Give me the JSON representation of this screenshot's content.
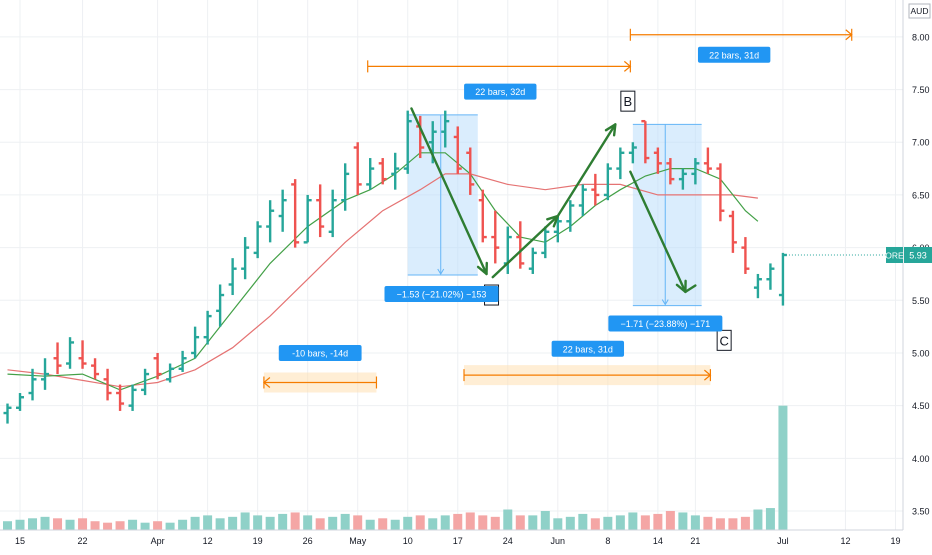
{
  "chart_data": {
    "type": "ohlc",
    "currency": "AUD",
    "symbol": "ORE",
    "last_price": "5.93",
    "y_ticks": [
      "3.50",
      "4.00",
      "4.50",
      "5.00",
      "5.50",
      "6.00",
      "6.50",
      "7.00",
      "7.50",
      "8.00"
    ],
    "ylim": [
      3.32,
      8.35
    ],
    "x_ticks": [
      {
        "label": "15",
        "bar": 1
      },
      {
        "label": "22",
        "bar": 6
      },
      {
        "label": "Apr",
        "bar": 12
      },
      {
        "label": "12",
        "bar": 16
      },
      {
        "label": "19",
        "bar": 20
      },
      {
        "label": "26",
        "bar": 24
      },
      {
        "label": "May",
        "bar": 28
      },
      {
        "label": "10",
        "bar": 32
      },
      {
        "label": "17",
        "bar": 36
      },
      {
        "label": "24",
        "bar": 40
      },
      {
        "label": "Jun",
        "bar": 44
      },
      {
        "label": "8",
        "bar": 48
      },
      {
        "label": "14",
        "bar": 52
      },
      {
        "label": "21",
        "bar": 55
      },
      {
        "label": "Jul",
        "bar": 62
      },
      {
        "label": "12",
        "bar": 67
      },
      {
        "label": "19",
        "bar": 71
      }
    ],
    "bars": [
      [
        4.43,
        4.52,
        4.33,
        4.48
      ],
      [
        4.48,
        4.62,
        4.45,
        4.58
      ],
      [
        4.62,
        4.85,
        4.55,
        4.75
      ],
      [
        4.75,
        4.95,
        4.65,
        4.8
      ],
      [
        4.95,
        5.1,
        4.8,
        4.88
      ],
      [
        4.9,
        5.15,
        4.85,
        5.1
      ],
      [
        4.95,
        5.12,
        4.85,
        4.9
      ],
      [
        4.88,
        4.95,
        4.75,
        4.8
      ],
      [
        4.75,
        4.85,
        4.55,
        4.62
      ],
      [
        4.62,
        4.7,
        4.45,
        4.52
      ],
      [
        4.5,
        4.7,
        4.45,
        4.65
      ],
      [
        4.65,
        4.85,
        4.6,
        4.8
      ],
      [
        4.95,
        5.0,
        4.75,
        4.8
      ],
      [
        4.75,
        4.9,
        4.72,
        4.85
      ],
      [
        4.85,
        5.02,
        4.82,
        4.95
      ],
      [
        5.0,
        5.25,
        4.95,
        5.15
      ],
      [
        5.15,
        5.4,
        5.08,
        5.35
      ],
      [
        5.4,
        5.65,
        5.25,
        5.55
      ],
      [
        5.65,
        5.9,
        5.55,
        5.8
      ],
      [
        5.8,
        6.1,
        5.7,
        6.0
      ],
      [
        5.95,
        6.25,
        5.9,
        6.2
      ],
      [
        6.2,
        6.45,
        6.05,
        6.35
      ],
      [
        6.3,
        6.55,
        6.15,
        6.45
      ],
      [
        6.6,
        6.65,
        6.0,
        6.05
      ],
      [
        6.05,
        6.5,
        6.05,
        6.45
      ],
      [
        6.45,
        6.6,
        6.1,
        6.2
      ],
      [
        6.15,
        6.55,
        6.1,
        6.45
      ],
      [
        6.45,
        6.8,
        6.35,
        6.7
      ],
      [
        6.95,
        7.0,
        6.5,
        6.6
      ],
      [
        6.6,
        6.85,
        6.55,
        6.75
      ],
      [
        6.8,
        6.85,
        6.6,
        6.65
      ],
      [
        6.7,
        6.9,
        6.55,
        6.75
      ],
      [
        6.75,
        7.3,
        6.7,
        7.2
      ],
      [
        7.15,
        7.25,
        6.85,
        6.95
      ],
      [
        7.0,
        7.2,
        6.8,
        7.1
      ],
      [
        7.1,
        7.3,
        6.95,
        7.2
      ],
      [
        7.05,
        7.15,
        6.7,
        6.75
      ],
      [
        6.9,
        6.95,
        6.5,
        6.6
      ],
      [
        6.45,
        6.55,
        6.05,
        6.1
      ],
      [
        6.1,
        6.35,
        5.85,
        6.0
      ],
      [
        5.85,
        6.2,
        5.75,
        6.1
      ],
      [
        6.1,
        6.25,
        5.8,
        5.85
      ],
      [
        5.8,
        6.0,
        5.75,
        5.95
      ],
      [
        5.95,
        6.2,
        5.9,
        6.15
      ],
      [
        6.15,
        6.3,
        6.05,
        6.25
      ],
      [
        6.25,
        6.45,
        6.15,
        6.4
      ],
      [
        6.4,
        6.6,
        6.3,
        6.55
      ],
      [
        6.55,
        6.7,
        6.4,
        6.5
      ],
      [
        6.5,
        6.8,
        6.45,
        6.75
      ],
      [
        6.75,
        6.95,
        6.65,
        6.9
      ],
      [
        6.9,
        7.0,
        6.8,
        6.95
      ],
      [
        7.2,
        7.2,
        6.8,
        6.85
      ],
      [
        6.9,
        6.95,
        6.7,
        6.8
      ],
      [
        6.8,
        6.85,
        6.6,
        6.65
      ],
      [
        6.65,
        6.75,
        6.55,
        6.7
      ],
      [
        6.7,
        6.85,
        6.6,
        6.8
      ],
      [
        6.8,
        6.95,
        6.7,
        6.75
      ],
      [
        6.75,
        6.8,
        6.25,
        6.35
      ],
      [
        6.3,
        6.35,
        5.95,
        6.05
      ],
      [
        6.0,
        6.1,
        5.75,
        5.8
      ],
      [
        5.62,
        5.75,
        5.52,
        5.7
      ],
      [
        5.7,
        5.85,
        5.6,
        5.8
      ],
      [
        5.55,
        5.95,
        5.45,
        5.93
      ]
    ],
    "volume": [
      0.6,
      0.7,
      0.8,
      0.9,
      0.8,
      0.7,
      0.8,
      0.6,
      0.5,
      0.6,
      0.7,
      0.5,
      0.6,
      0.5,
      0.7,
      0.9,
      1.0,
      0.8,
      0.9,
      1.2,
      1.0,
      0.9,
      1.1,
      1.2,
      1.0,
      0.8,
      0.9,
      1.1,
      1.0,
      0.7,
      0.8,
      0.7,
      0.9,
      1.0,
      0.8,
      1.0,
      1.1,
      1.2,
      1.0,
      0.9,
      1.4,
      1.0,
      1.0,
      1.3,
      0.8,
      0.9,
      1.1,
      0.8,
      0.9,
      1.0,
      1.2,
      1.0,
      1.1,
      1.3,
      1.2,
      1.0,
      0.9,
      0.8,
      0.8,
      0.9,
      1.4,
      1.5,
      8.5
    ],
    "x_bar_span": [
      -0.6,
      71.6
    ],
    "ma_fast": [
      [
        0,
        4.8
      ],
      [
        3,
        4.78
      ],
      [
        6,
        4.8
      ],
      [
        9,
        4.65
      ],
      [
        12,
        4.78
      ],
      [
        15,
        4.95
      ],
      [
        18,
        5.4
      ],
      [
        21,
        5.85
      ],
      [
        24,
        6.2
      ],
      [
        27,
        6.45
      ],
      [
        29,
        6.55
      ],
      [
        31,
        6.7
      ],
      [
        33,
        6.9
      ],
      [
        35,
        6.9
      ],
      [
        37,
        6.7
      ],
      [
        39,
        6.35
      ],
      [
        41,
        6.1
      ],
      [
        43,
        6.05
      ],
      [
        45,
        6.2
      ],
      [
        47,
        6.4
      ],
      [
        49,
        6.55
      ],
      [
        51,
        6.68
      ],
      [
        53,
        6.75
      ],
      [
        55,
        6.75
      ],
      [
        57,
        6.65
      ],
      [
        58,
        6.5
      ],
      [
        59,
        6.35
      ],
      [
        60,
        6.25
      ]
    ],
    "ma_slow": [
      [
        0,
        4.84
      ],
      [
        3,
        4.8
      ],
      [
        6,
        4.74
      ],
      [
        9,
        4.68
      ],
      [
        12,
        4.72
      ],
      [
        15,
        4.84
      ],
      [
        18,
        5.05
      ],
      [
        21,
        5.35
      ],
      [
        24,
        5.7
      ],
      [
        27,
        6.05
      ],
      [
        30,
        6.35
      ],
      [
        33,
        6.55
      ],
      [
        35,
        6.7
      ],
      [
        37,
        6.7
      ],
      [
        40,
        6.6
      ],
      [
        43,
        6.55
      ],
      [
        46,
        6.6
      ],
      [
        49,
        6.6
      ],
      [
        52,
        6.5
      ],
      [
        55,
        6.5
      ],
      [
        58,
        6.5
      ],
      [
        60,
        6.47
      ]
    ],
    "annotations": {
      "label_a": "A",
      "label_b": "B",
      "label_c": "C",
      "measure_1": "−1.53 (−21.02%) −153",
      "measure_2": "−1.71 (−23.88%) −171",
      "range_1": "22 bars, 32d",
      "range_2": "22 bars, 31d",
      "range_3": "22 bars, 31d",
      "range_4": "-10 bars, -14d"
    }
  },
  "colors": {
    "up": "#26a69a",
    "down": "#ef5350",
    "vol_up": "#8fd1c8",
    "vol_down": "#f4a6a5",
    "ma_fast": "#43a047",
    "ma_slow": "#e57373",
    "arrow": "#2e7d32",
    "range_orange": "#f57c00",
    "measure_fill": "#bbdefb",
    "measure_line": "#64b5f6",
    "label_blue": "#2196f3",
    "grid": "#eef0f3"
  }
}
